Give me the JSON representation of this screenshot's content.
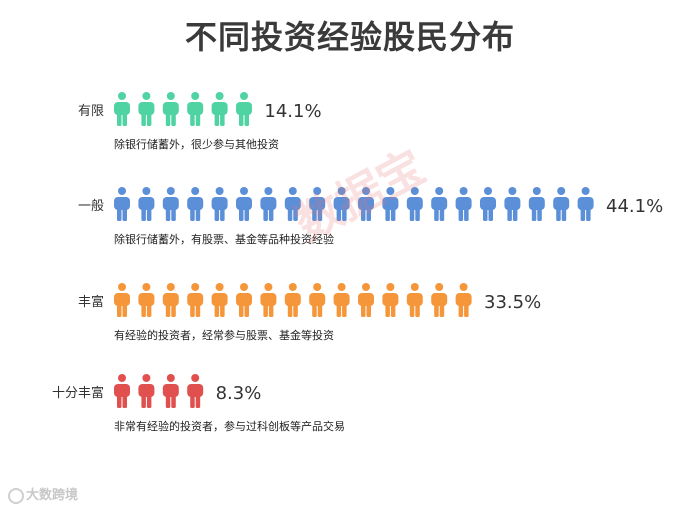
{
  "title": "不同投资经验股民分布",
  "watermark": "数据宝",
  "brand": "大数跨境",
  "chart_data": {
    "type": "pictograph",
    "rows": [
      {
        "label": "有限",
        "value": 14.1,
        "value_label": "14.1%",
        "icons": 6,
        "color": "#4fd3a3",
        "description": "除银行储蓄外，很少参与其他投资"
      },
      {
        "label": "一般",
        "value": 44.1,
        "value_label": "44.1%",
        "icons": 20,
        "color": "#5b8fd8",
        "description": "除银行储蓄外，有股票、基金等品种投资经验"
      },
      {
        "label": "丰富",
        "value": 33.5,
        "value_label": "33.5%",
        "icons": 15,
        "color": "#f5963a",
        "description": "有经验的投资者，经常参与股票、基金等投资"
      },
      {
        "label": "十分丰富",
        "value": 8.3,
        "value_label": "8.3%",
        "icons": 4,
        "color": "#e0504f",
        "description": "非常有经验的投资者，参与过科创板等产品交易"
      }
    ]
  }
}
